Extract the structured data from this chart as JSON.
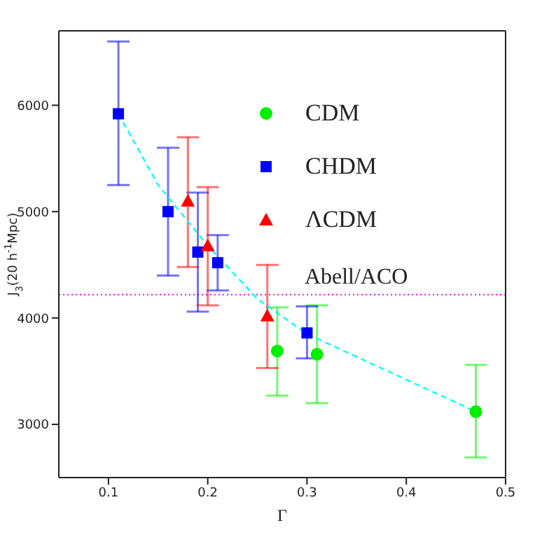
{
  "chart_data": {
    "type": "scatter",
    "xlabel": "Γ",
    "ylabel": "J$_{3}$(20 h$^{-1}$Mpc)",
    "xlim": [
      0.05,
      0.5
    ],
    "xticks": [
      0.1,
      0.2,
      0.3,
      0.4,
      0.5
    ],
    "ylim": [
      2500,
      6700
    ],
    "yticks": [
      3000,
      4000,
      5000,
      6000
    ],
    "grid": false,
    "legend": "top right",
    "series": [
      {
        "name": "CDM",
        "marker": "circle",
        "color": "#00ee00",
        "x": [
          0.27,
          0.31,
          0.47
        ],
        "values": [
          3690,
          3660,
          3120
        ],
        "errors": [
          [
            3270,
            4100
          ],
          [
            3200,
            4120
          ],
          [
            2690,
            3560
          ]
        ]
      },
      {
        "name": "CHDM",
        "marker": "square",
        "color": "#0000ff",
        "x": [
          0.11,
          0.16,
          0.19,
          0.21,
          0.3
        ],
        "values": [
          5920,
          5000,
          4620,
          4520,
          3860
        ],
        "errors": [
          [
            5250,
            6600
          ],
          [
            4400,
            5600
          ],
          [
            4060,
            5180
          ],
          [
            4260,
            4780
          ],
          [
            3620,
            4110
          ]
        ]
      },
      {
        "name": "ΛCDM",
        "marker": "triangle",
        "color": "#ff0000",
        "x": [
          0.18,
          0.2,
          0.26
        ],
        "values": [
          5100,
          4680,
          4020
        ],
        "errors": [
          [
            4480,
            5700
          ],
          [
            4120,
            5230
          ],
          [
            3530,
            4500
          ]
        ]
      },
      {
        "type": "line",
        "marker": "none",
        "line_style": "dashed",
        "color": "#00ffff",
        "x": [
          0.11,
          0.15,
          0.2,
          0.25,
          0.3,
          0.4,
          0.47
        ],
        "values": [
          5920,
          5250,
          4680,
          4180,
          3850,
          3420,
          3120
        ]
      }
    ],
    "ref_lines": [
      {
        "axis": "y",
        "value": 4220,
        "label": "Abell/ACO",
        "color": "#ff00ff",
        "line_style": "dotted"
      }
    ]
  }
}
